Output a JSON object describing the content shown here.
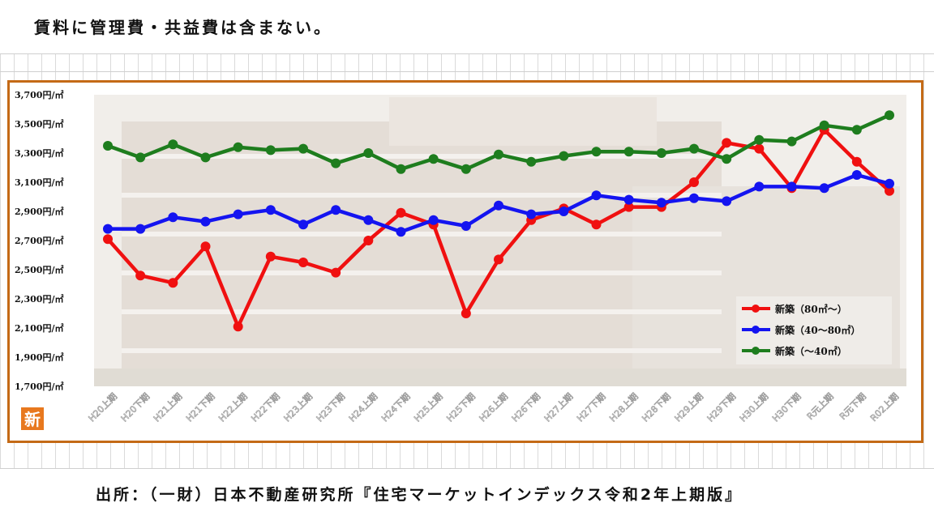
{
  "note": "賃料に管理費・共益費は含まない。",
  "source": "出所：（一財）日本不動産研究所『住宅マーケットインデックス令和2年上期版』",
  "badge": "新",
  "colors": {
    "frame": "#c46a16",
    "red": "#f01010",
    "blue": "#1414f0",
    "green": "#1e7d1e",
    "badge": "#e8781e"
  },
  "chart_data": {
    "type": "line",
    "title": "",
    "xlabel": "",
    "ylabel": "",
    "ylim": [
      1700,
      3700
    ],
    "yticks": [
      "3,700円/㎡",
      "3,500円/㎡",
      "3,300円/㎡",
      "3,100円/㎡",
      "2,900円/㎡",
      "2,700円/㎡",
      "2,500円/㎡",
      "2,300円/㎡",
      "2,100円/㎡",
      "1,900円/㎡",
      "1,700円/㎡"
    ],
    "ytick_values": [
      3700,
      3500,
      3300,
      3100,
      2900,
      2700,
      2500,
      2300,
      2100,
      1900,
      1700
    ],
    "categories": [
      "H20上期",
      "H20下期",
      "H21上期",
      "H21下期",
      "H22上期",
      "H22下期",
      "H23上期",
      "H23下期",
      "H24上期",
      "H24下期",
      "H25上期",
      "H25下期",
      "H26上期",
      "H26下期",
      "H27上期",
      "H27下期",
      "H28上期",
      "H28下期",
      "H29上期",
      "H29下期",
      "H30上期",
      "H30下期",
      "R元上期",
      "R元下期",
      "R02上期"
    ],
    "legend_position": "bottom-right",
    "series": [
      {
        "name": "新築（80㎡～）",
        "color": "#f01010",
        "values": [
          2710,
          2460,
          2410,
          2660,
          2110,
          2590,
          2550,
          2480,
          2700,
          2890,
          2810,
          2200,
          2570,
          2840,
          2920,
          2810,
          2930,
          2930,
          3100,
          3370,
          3330,
          3060,
          3460,
          3240,
          3040
        ]
      },
      {
        "name": "新築（40～80㎡）",
        "color": "#1414f0",
        "values": [
          2780,
          2780,
          2860,
          2830,
          2880,
          2910,
          2810,
          2910,
          2840,
          2760,
          2840,
          2800,
          2940,
          2880,
          2900,
          3010,
          2980,
          2960,
          2990,
          2970,
          3070,
          3070,
          3060,
          3150,
          3090
        ]
      },
      {
        "name": "新築（～40㎡）",
        "color": "#1e7d1e",
        "values": [
          3350,
          3270,
          3360,
          3270,
          3340,
          3320,
          3330,
          3230,
          3300,
          3190,
          3260,
          3190,
          3290,
          3240,
          3280,
          3310,
          3310,
          3300,
          3330,
          3260,
          3390,
          3380,
          3490,
          3460,
          3560
        ]
      }
    ]
  }
}
